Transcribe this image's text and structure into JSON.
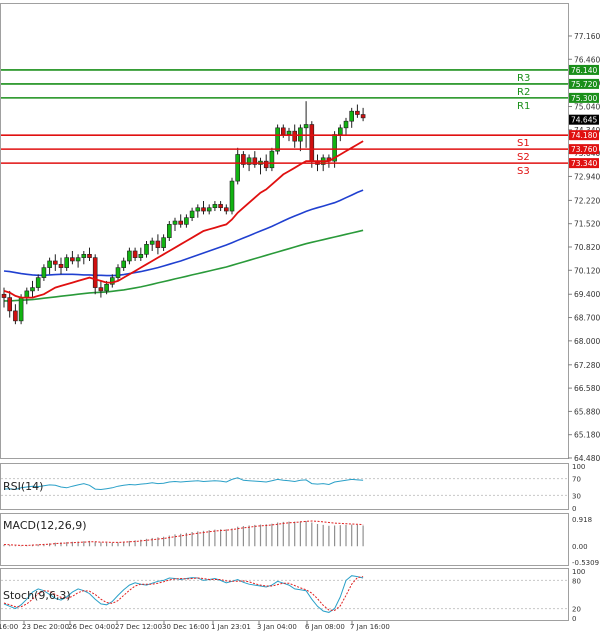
{
  "chart_data": [
    {
      "type": "candlestick",
      "panel": "main",
      "price_axis_ticks": [
        "77.160",
        "76.460",
        "75.740",
        "75.040",
        "74.340",
        "73.640",
        "72.940",
        "72.220",
        "71.520",
        "70.820",
        "70.120",
        "69.400",
        "68.700",
        "68.000",
        "67.280",
        "66.580",
        "65.880",
        "65.180",
        "64.480"
      ],
      "ylim": [
        64.48,
        77.64
      ],
      "current_price": "74.645",
      "time_labels": [
        "16:00",
        "23 Dec 20:00",
        "26 Dec 04:00",
        "27 Dec 12:00",
        "30 Dec 16:00",
        "1 Jan 23:01",
        "3 Jan 04:00",
        "6 Jan 08:00",
        "7 Jan 16:00"
      ],
      "levels": [
        {
          "name": "R3",
          "value": "76.140",
          "color": "#1a8f1a"
        },
        {
          "name": "R2",
          "value": "75.720",
          "color": "#1a8f1a"
        },
        {
          "name": "R1",
          "value": "75.300",
          "color": "#1a8f1a"
        },
        {
          "name": "S1",
          "value": "74.180",
          "color": "#e01010"
        },
        {
          "name": "S2",
          "value": "73.760",
          "color": "#e01010"
        },
        {
          "name": "S3",
          "value": "73.340",
          "color": "#e01010"
        }
      ],
      "candles": [
        [
          69.4,
          69.6,
          69.0,
          69.3
        ],
        [
          69.3,
          69.5,
          68.7,
          68.9
        ],
        [
          68.9,
          69.1,
          68.5,
          68.6
        ],
        [
          68.6,
          69.4,
          68.5,
          69.3
        ],
        [
          69.3,
          69.6,
          69.1,
          69.5
        ],
        [
          69.5,
          69.8,
          69.3,
          69.6
        ],
        [
          69.6,
          70.0,
          69.5,
          69.9
        ],
        [
          69.9,
          70.3,
          69.8,
          70.2
        ],
        [
          70.2,
          70.5,
          70.0,
          70.4
        ],
        [
          70.4,
          70.6,
          70.1,
          70.3
        ],
        [
          70.3,
          70.5,
          70.0,
          70.2
        ],
        [
          70.2,
          70.6,
          70.1,
          70.5
        ],
        [
          70.5,
          70.7,
          70.3,
          70.4
        ],
        [
          70.4,
          70.6,
          70.2,
          70.5
        ],
        [
          70.5,
          70.7,
          70.3,
          70.6
        ],
        [
          70.6,
          70.8,
          70.4,
          70.5
        ],
        [
          70.5,
          70.6,
          69.4,
          69.6
        ],
        [
          69.6,
          69.8,
          69.3,
          69.5
        ],
        [
          69.5,
          69.8,
          69.4,
          69.7
        ],
        [
          69.7,
          70.0,
          69.6,
          69.9
        ],
        [
          69.9,
          70.3,
          69.8,
          70.2
        ],
        [
          70.2,
          70.5,
          70.1,
          70.4
        ],
        [
          70.4,
          70.8,
          70.3,
          70.7
        ],
        [
          70.7,
          70.8,
          70.4,
          70.5
        ],
        [
          70.5,
          70.8,
          70.4,
          70.6
        ],
        [
          70.6,
          71.0,
          70.5,
          70.9
        ],
        [
          70.9,
          71.1,
          70.7,
          71.0
        ],
        [
          71.0,
          71.2,
          70.6,
          70.8
        ],
        [
          70.8,
          71.2,
          70.7,
          71.1
        ],
        [
          71.1,
          71.6,
          71.0,
          71.5
        ],
        [
          71.5,
          71.7,
          71.3,
          71.6
        ],
        [
          71.6,
          71.8,
          71.4,
          71.5
        ],
        [
          71.5,
          71.8,
          71.4,
          71.7
        ],
        [
          71.7,
          72.0,
          71.6,
          71.9
        ],
        [
          71.9,
          72.1,
          71.7,
          72.0
        ],
        [
          72.0,
          72.2,
          71.8,
          71.9
        ],
        [
          71.9,
          72.1,
          71.8,
          72.0
        ],
        [
          72.0,
          72.2,
          71.9,
          72.1
        ],
        [
          72.1,
          72.2,
          71.9,
          72.0
        ],
        [
          72.0,
          72.1,
          71.8,
          71.9
        ],
        [
          71.9,
          72.9,
          71.8,
          72.8
        ],
        [
          72.8,
          73.8,
          72.7,
          73.6
        ],
        [
          73.6,
          73.7,
          73.2,
          73.3
        ],
        [
          73.3,
          73.6,
          73.1,
          73.5
        ],
        [
          73.5,
          73.7,
          73.2,
          73.3
        ],
        [
          73.3,
          73.5,
          73.0,
          73.4
        ],
        [
          73.4,
          73.6,
          73.1,
          73.2
        ],
        [
          73.2,
          73.8,
          73.1,
          73.7
        ],
        [
          73.7,
          74.5,
          73.6,
          74.4
        ],
        [
          74.4,
          74.5,
          74.1,
          74.2
        ],
        [
          74.2,
          74.4,
          74.0,
          74.3
        ],
        [
          74.3,
          74.5,
          73.8,
          74.0
        ],
        [
          74.0,
          74.5,
          73.7,
          74.4
        ],
        [
          74.4,
          75.2,
          73.8,
          74.5
        ],
        [
          74.5,
          74.6,
          73.2,
          73.4
        ],
        [
          73.4,
          73.6,
          73.1,
          73.3
        ],
        [
          73.3,
          73.6,
          73.1,
          73.5
        ],
        [
          73.5,
          73.6,
          73.2,
          73.4
        ],
        [
          73.4,
          74.3,
          73.2,
          74.2
        ],
        [
          74.2,
          74.5,
          74.0,
          74.4
        ],
        [
          74.4,
          74.7,
          74.2,
          74.6
        ],
        [
          74.6,
          75.0,
          74.4,
          74.9
        ],
        [
          74.9,
          75.1,
          74.7,
          74.8
        ],
        [
          74.8,
          75.0,
          74.6,
          74.7
        ]
      ],
      "ma_fast": [
        69.5,
        69.45,
        69.35,
        69.3,
        69.3,
        69.3,
        69.35,
        69.4,
        69.5,
        69.6,
        69.65,
        69.7,
        69.75,
        69.8,
        69.85,
        69.9,
        69.85,
        69.8,
        69.75,
        69.75,
        69.8,
        69.9,
        70.0,
        70.1,
        70.2,
        70.3,
        70.4,
        70.5,
        70.6,
        70.7,
        70.8,
        70.9,
        71.0,
        71.1,
        71.2,
        71.3,
        71.35,
        71.4,
        71.45,
        71.5,
        71.65,
        71.85,
        72.0,
        72.15,
        72.3,
        72.45,
        72.55,
        72.7,
        72.85,
        73.0,
        73.1,
        73.2,
        73.3,
        73.4,
        73.4,
        73.4,
        73.4,
        73.4,
        73.5,
        73.6,
        73.7,
        73.8,
        73.9,
        74.0
      ],
      "ma_mid": [
        70.1,
        70.08,
        70.05,
        70.02,
        70.0,
        69.98,
        69.97,
        69.97,
        69.98,
        69.99,
        70.0,
        70.0,
        70.0,
        69.99,
        69.98,
        69.98,
        69.97,
        69.97,
        69.96,
        69.96,
        69.97,
        69.99,
        70.02,
        70.05,
        70.08,
        70.12,
        70.16,
        70.2,
        70.25,
        70.3,
        70.35,
        70.4,
        70.46,
        70.52,
        70.58,
        70.64,
        70.7,
        70.76,
        70.82,
        70.88,
        70.95,
        71.02,
        71.09,
        71.16,
        71.23,
        71.3,
        71.37,
        71.44,
        71.52,
        71.6,
        71.68,
        71.75,
        71.82,
        71.89,
        71.95,
        72.0,
        72.05,
        72.1,
        72.15,
        72.22,
        72.3,
        72.38,
        72.46,
        72.53
      ],
      "ma_slow": [
        69.2,
        69.2,
        69.21,
        69.22,
        69.23,
        69.24,
        69.26,
        69.28,
        69.3,
        69.32,
        69.34,
        69.36,
        69.38,
        69.4,
        69.42,
        69.44,
        69.45,
        69.46,
        69.47,
        69.49,
        69.51,
        69.53,
        69.56,
        69.59,
        69.62,
        69.66,
        69.7,
        69.74,
        69.78,
        69.82,
        69.86,
        69.9,
        69.94,
        69.98,
        70.02,
        70.06,
        70.1,
        70.14,
        70.18,
        70.22,
        70.27,
        70.32,
        70.37,
        70.42,
        70.47,
        70.52,
        70.57,
        70.62,
        70.67,
        70.72,
        70.77,
        70.82,
        70.87,
        70.92,
        70.96,
        71.0,
        71.04,
        71.08,
        71.12,
        71.16,
        71.2,
        71.24,
        71.28,
        71.32
      ],
      "colors": {
        "ma_fast": "#e01010",
        "ma_mid": "#2040d0",
        "ma_slow": "#2a9a3a",
        "bull": "#12b312",
        "bear": "#d01010"
      }
    },
    {
      "type": "line",
      "panel": "rsi",
      "title": "RSI(14)",
      "y_ticks": [
        "100",
        "70",
        "30",
        "0"
      ],
      "ylim": [
        0,
        100
      ],
      "values": [
        45,
        46,
        44,
        48,
        50,
        52,
        51,
        53,
        55,
        54,
        50,
        48,
        52,
        55,
        58,
        54,
        45,
        44,
        46,
        48,
        52,
        54,
        56,
        55,
        57,
        58,
        60,
        58,
        59,
        62,
        63,
        62,
        63,
        64,
        65,
        63,
        64,
        65,
        64,
        62,
        68,
        72,
        66,
        65,
        64,
        63,
        62,
        65,
        68,
        66,
        65,
        63,
        66,
        67,
        58,
        57,
        58,
        56,
        62,
        64,
        66,
        68,
        67,
        66
      ],
      "color": "#2aa0c8"
    },
    {
      "type": "bar",
      "panel": "macd",
      "title": "MACD(12,26,9)",
      "y_ticks": [
        "0.918",
        "0.00",
        "-0.5309"
      ],
      "ylim": [
        -0.5309,
        0.918
      ],
      "values": [
        0.05,
        0.04,
        0.02,
        0.02,
        0.03,
        0.05,
        0.06,
        0.08,
        0.1,
        0.12,
        0.13,
        0.14,
        0.15,
        0.16,
        0.17,
        0.18,
        0.15,
        0.13,
        0.12,
        0.12,
        0.13,
        0.15,
        0.18,
        0.2,
        0.22,
        0.25,
        0.28,
        0.3,
        0.32,
        0.36,
        0.4,
        0.42,
        0.45,
        0.48,
        0.5,
        0.52,
        0.54,
        0.56,
        0.57,
        0.57,
        0.6,
        0.66,
        0.68,
        0.7,
        0.72,
        0.73,
        0.74,
        0.76,
        0.8,
        0.82,
        0.83,
        0.83,
        0.84,
        0.85,
        0.8,
        0.75,
        0.72,
        0.69,
        0.7,
        0.71,
        0.72,
        0.73,
        0.72,
        0.7
      ],
      "signal": [
        0.06,
        0.05,
        0.04,
        0.03,
        0.03,
        0.04,
        0.05,
        0.06,
        0.07,
        0.09,
        0.1,
        0.11,
        0.12,
        0.13,
        0.14,
        0.15,
        0.15,
        0.14,
        0.14,
        0.13,
        0.13,
        0.14,
        0.15,
        0.16,
        0.18,
        0.2,
        0.22,
        0.24,
        0.26,
        0.29,
        0.32,
        0.35,
        0.38,
        0.41,
        0.44,
        0.46,
        0.49,
        0.51,
        0.53,
        0.54,
        0.56,
        0.59,
        0.62,
        0.64,
        0.67,
        0.69,
        0.7,
        0.72,
        0.74,
        0.77,
        0.79,
        0.8,
        0.82,
        0.84,
        0.85,
        0.84,
        0.82,
        0.8,
        0.78,
        0.77,
        0.76,
        0.75,
        0.74,
        0.73
      ],
      "color": "#909090",
      "signal_color": "#e02020"
    },
    {
      "type": "line",
      "panel": "stoch",
      "title": "Stoch(9,6,3)",
      "y_ticks": [
        "100",
        "80",
        "20",
        "0"
      ],
      "ylim": [
        0,
        100
      ],
      "k": [
        30,
        25,
        20,
        28,
        40,
        55,
        62,
        58,
        50,
        42,
        38,
        45,
        55,
        62,
        58,
        52,
        40,
        30,
        28,
        35,
        48,
        60,
        70,
        75,
        72,
        70,
        74,
        78,
        80,
        85,
        84,
        82,
        84,
        86,
        85,
        80,
        82,
        84,
        80,
        75,
        78,
        82,
        76,
        72,
        70,
        68,
        66,
        70,
        78,
        74,
        70,
        62,
        60,
        58,
        40,
        25,
        15,
        12,
        20,
        45,
        80,
        90,
        88,
        85
      ],
      "d": [
        32,
        28,
        24,
        24,
        30,
        40,
        52,
        58,
        57,
        50,
        44,
        42,
        46,
        54,
        58,
        57,
        50,
        40,
        33,
        31,
        37,
        48,
        59,
        68,
        72,
        72,
        72,
        74,
        77,
        81,
        83,
        84,
        83,
        84,
        85,
        84,
        82,
        82,
        82,
        79,
        78,
        78,
        79,
        77,
        73,
        70,
        68,
        68,
        71,
        74,
        74,
        69,
        64,
        60,
        53,
        41,
        27,
        17,
        16,
        26,
        48,
        72,
        86,
        88
      ],
      "colors": {
        "k": "#2aa0c8",
        "d": "#e02020"
      }
    }
  ]
}
